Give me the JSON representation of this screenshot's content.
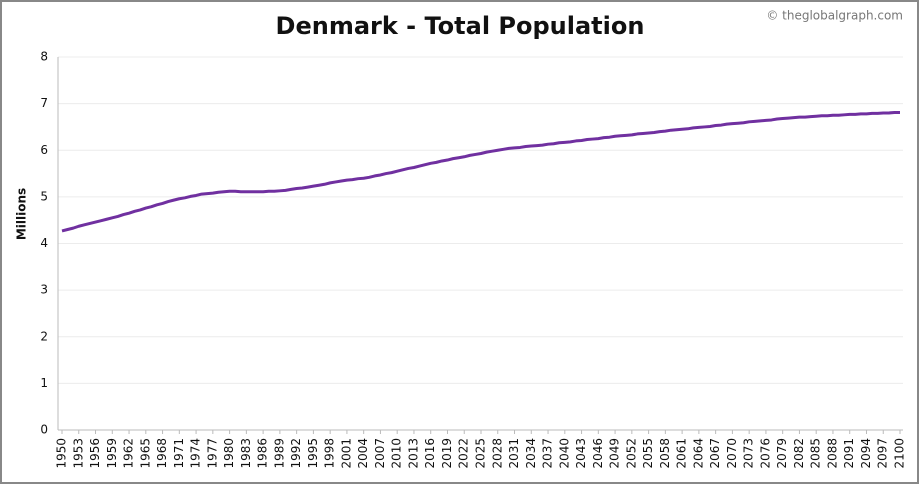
{
  "chart_data": {
    "type": "line",
    "title": "Denmark - Total Population",
    "watermark": "© theglobalgraph.com",
    "y_label": "Millions",
    "x": [
      1950,
      1951,
      1952,
      1953,
      1954,
      1955,
      1956,
      1957,
      1958,
      1959,
      1960,
      1961,
      1962,
      1963,
      1964,
      1965,
      1966,
      1967,
      1968,
      1969,
      1970,
      1971,
      1972,
      1973,
      1974,
      1975,
      1976,
      1977,
      1978,
      1979,
      1980,
      1981,
      1982,
      1983,
      1984,
      1985,
      1986,
      1987,
      1988,
      1989,
      1990,
      1991,
      1992,
      1993,
      1994,
      1995,
      1996,
      1997,
      1998,
      1999,
      2000,
      2001,
      2002,
      2003,
      2004,
      2005,
      2006,
      2007,
      2008,
      2009,
      2010,
      2011,
      2012,
      2013,
      2014,
      2015,
      2016,
      2017,
      2018,
      2019,
      2020,
      2021,
      2022,
      2023,
      2024,
      2025,
      2026,
      2027,
      2028,
      2029,
      2030,
      2031,
      2032,
      2033,
      2034,
      2035,
      2036,
      2037,
      2038,
      2039,
      2040,
      2041,
      2042,
      2043,
      2044,
      2045,
      2046,
      2047,
      2048,
      2049,
      2050,
      2051,
      2052,
      2053,
      2054,
      2055,
      2056,
      2057,
      2058,
      2059,
      2060,
      2061,
      2062,
      2063,
      2064,
      2065,
      2066,
      2067,
      2068,
      2069,
      2070,
      2071,
      2072,
      2073,
      2074,
      2075,
      2076,
      2077,
      2078,
      2079,
      2080,
      2081,
      2082,
      2083,
      2084,
      2085,
      2086,
      2087,
      2088,
      2089,
      2090,
      2091,
      2092,
      2093,
      2094,
      2095,
      2096,
      2097,
      2098,
      2099,
      2100
    ],
    "series": [
      {
        "name": "Total Population",
        "color": "#7030a0",
        "values": [
          4.27,
          4.3,
          4.33,
          4.37,
          4.4,
          4.43,
          4.46,
          4.49,
          4.52,
          4.55,
          4.58,
          4.62,
          4.65,
          4.69,
          4.72,
          4.76,
          4.79,
          4.83,
          4.86,
          4.9,
          4.93,
          4.96,
          4.98,
          5.01,
          5.03,
          5.06,
          5.07,
          5.08,
          5.1,
          5.11,
          5.12,
          5.12,
          5.11,
          5.11,
          5.11,
          5.11,
          5.11,
          5.12,
          5.12,
          5.13,
          5.14,
          5.16,
          5.18,
          5.19,
          5.21,
          5.23,
          5.25,
          5.27,
          5.3,
          5.32,
          5.34,
          5.36,
          5.37,
          5.39,
          5.4,
          5.42,
          5.45,
          5.47,
          5.5,
          5.52,
          5.55,
          5.58,
          5.61,
          5.63,
          5.66,
          5.69,
          5.72,
          5.74,
          5.77,
          5.79,
          5.82,
          5.84,
          5.86,
          5.89,
          5.91,
          5.93,
          5.96,
          5.98,
          6.0,
          6.02,
          6.04,
          6.05,
          6.06,
          6.08,
          6.09,
          6.1,
          6.11,
          6.13,
          6.14,
          6.16,
          6.17,
          6.18,
          6.2,
          6.21,
          6.23,
          6.24,
          6.25,
          6.27,
          6.28,
          6.3,
          6.31,
          6.32,
          6.33,
          6.35,
          6.36,
          6.37,
          6.38,
          6.4,
          6.41,
          6.43,
          6.44,
          6.45,
          6.46,
          6.48,
          6.49,
          6.5,
          6.51,
          6.53,
          6.54,
          6.56,
          6.57,
          6.58,
          6.59,
          6.61,
          6.62,
          6.63,
          6.64,
          6.65,
          6.67,
          6.68,
          6.69,
          6.7,
          6.71,
          6.71,
          6.72,
          6.73,
          6.74,
          6.74,
          6.75,
          6.75,
          6.76,
          6.77,
          6.77,
          6.78,
          6.78,
          6.79,
          6.79,
          6.8,
          6.8,
          6.81,
          6.81
        ]
      }
    ],
    "xlim": [
      1950,
      2100
    ],
    "xticks": [
      1950,
      1953,
      1956,
      1959,
      1962,
      1965,
      1968,
      1971,
      1974,
      1977,
      1980,
      1983,
      1986,
      1989,
      1992,
      1995,
      1998,
      2001,
      2004,
      2007,
      2010,
      2013,
      2016,
      2019,
      2022,
      2025,
      2028,
      2031,
      2034,
      2037,
      2040,
      2043,
      2046,
      2049,
      2052,
      2055,
      2058,
      2061,
      2064,
      2067,
      2070,
      2073,
      2076,
      2079,
      2082,
      2085,
      2088,
      2091,
      2094,
      2097,
      2100
    ],
    "ylim": [
      0,
      8
    ],
    "yticks": [
      0,
      1,
      2,
      3,
      4,
      5,
      6,
      7,
      8
    ],
    "grid": true
  }
}
